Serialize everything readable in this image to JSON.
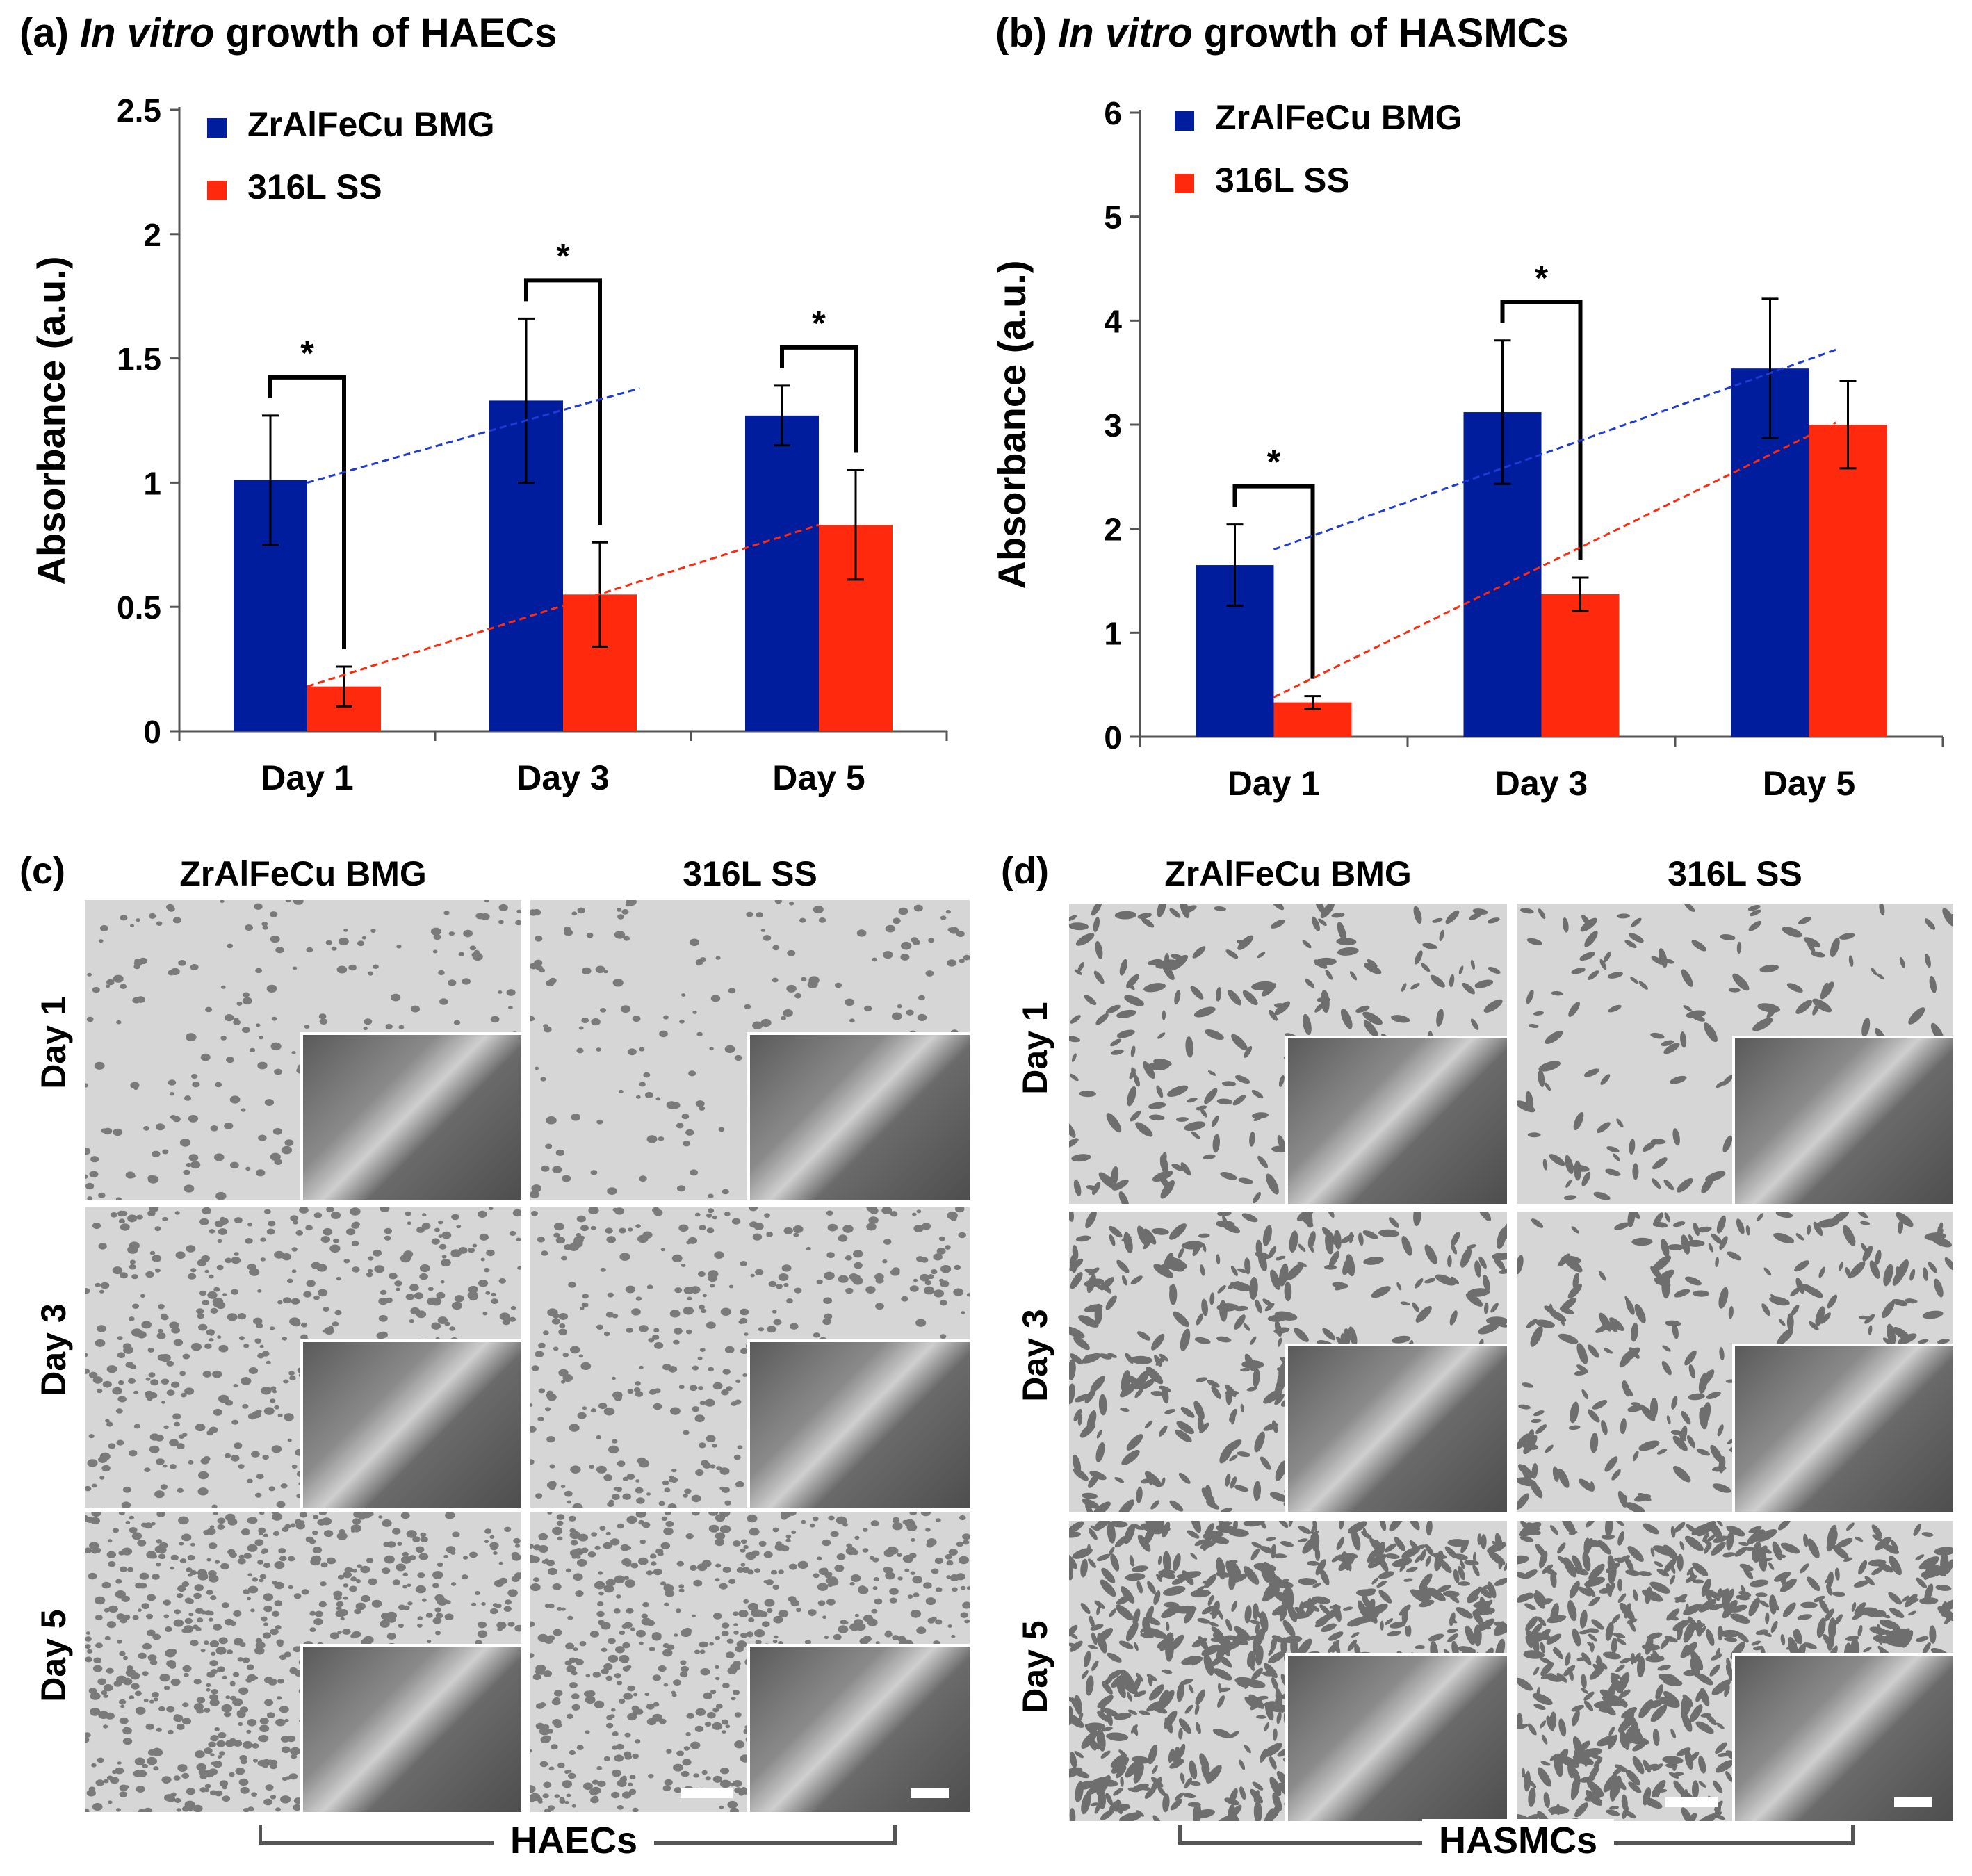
{
  "panel_a": {
    "label": "(a)",
    "title_italic": "In vitro",
    "title_rest": " growth of HAECs"
  },
  "panel_b": {
    "label": "(b)",
    "title_italic": "In vitro",
    "title_rest": " growth of HASMCs"
  },
  "chart_data": [
    {
      "id": "a",
      "type": "bar",
      "title": "(a) In vitro growth of HAECs",
      "ylabel": "Absorbance (a.u.)",
      "xlabel": "",
      "categories": [
        "Day 1",
        "Day 3",
        "Day 5"
      ],
      "ylim": [
        0,
        2.5
      ],
      "yticks": [
        0,
        0.5,
        1,
        1.5,
        2,
        2.5
      ],
      "ytick_labels": [
        "0",
        "0.5",
        "1",
        "1.5",
        "2",
        "2.5"
      ],
      "legend_position": "top-left",
      "series": [
        {
          "name": "ZrAlFeCu BMG",
          "color": "#001d9e",
          "values": [
            1.01,
            1.33,
            1.27
          ],
          "errors": [
            0.26,
            0.33,
            0.12
          ]
        },
        {
          "name": "316L SS",
          "color": "#ff2a0e",
          "values": [
            0.18,
            0.55,
            0.83
          ],
          "errors": [
            0.08,
            0.21,
            0.22
          ]
        }
      ],
      "significance": [
        {
          "label": "*",
          "category": "Day 1"
        },
        {
          "label": "*",
          "category": "Day 3"
        },
        {
          "label": "*",
          "category": "Day 5"
        }
      ],
      "trendlines": [
        {
          "series": "ZrAlFeCu BMG",
          "color": "#1f3bd6",
          "from": [
            0,
            1.0
          ],
          "to": [
            1.3,
            1.38
          ]
        },
        {
          "series": "316L SS",
          "color": "#ff2a0e",
          "from": [
            0,
            0.18
          ],
          "to": [
            2,
            0.83
          ]
        }
      ]
    },
    {
      "id": "b",
      "type": "bar",
      "title": "(b) In vitro growth of HASMCs",
      "ylabel": "Absorbance (a.u.)",
      "xlabel": "",
      "categories": [
        "Day 1",
        "Day 3",
        "Day 5"
      ],
      "ylim": [
        0,
        6
      ],
      "yticks": [
        0,
        1,
        2,
        3,
        4,
        5,
        6
      ],
      "ytick_labels": [
        "0",
        "1",
        "2",
        "3",
        "4",
        "5",
        "6"
      ],
      "legend_position": "top-left",
      "series": [
        {
          "name": "ZrAlFeCu BMG",
          "color": "#001d9e",
          "values": [
            1.65,
            3.12,
            3.54
          ],
          "errors": [
            0.39,
            0.69,
            0.67
          ]
        },
        {
          "name": "316L SS",
          "color": "#ff2a0e",
          "values": [
            0.33,
            1.37,
            3.0
          ],
          "errors": [
            0.06,
            0.16,
            0.42
          ]
        }
      ],
      "significance": [
        {
          "label": "*",
          "category": "Day 1"
        },
        {
          "label": "*",
          "category": "Day 3"
        }
      ],
      "trendlines": [
        {
          "series": "ZrAlFeCu BMG",
          "color": "#1f3bd6",
          "from": [
            0,
            1.8
          ],
          "to": [
            2.1,
            3.72
          ]
        },
        {
          "series": "316L SS",
          "color": "#ff2a0e",
          "from": [
            0,
            0.38
          ],
          "to": [
            2.1,
            3.02
          ]
        }
      ]
    }
  ],
  "panel_c": {
    "label": "(c)",
    "col_headers": [
      "ZrAlFeCu BMG",
      "316L SS"
    ],
    "row_labels": [
      "Day 1",
      "Day 3",
      "Day 5"
    ],
    "group_label": "HAECs"
  },
  "panel_d": {
    "label": "(d)",
    "col_headers": [
      "ZrAlFeCu BMG",
      "316L SS"
    ],
    "row_labels": [
      "Day 1",
      "Day 3",
      "Day 5"
    ],
    "group_label": "HASMCs"
  }
}
